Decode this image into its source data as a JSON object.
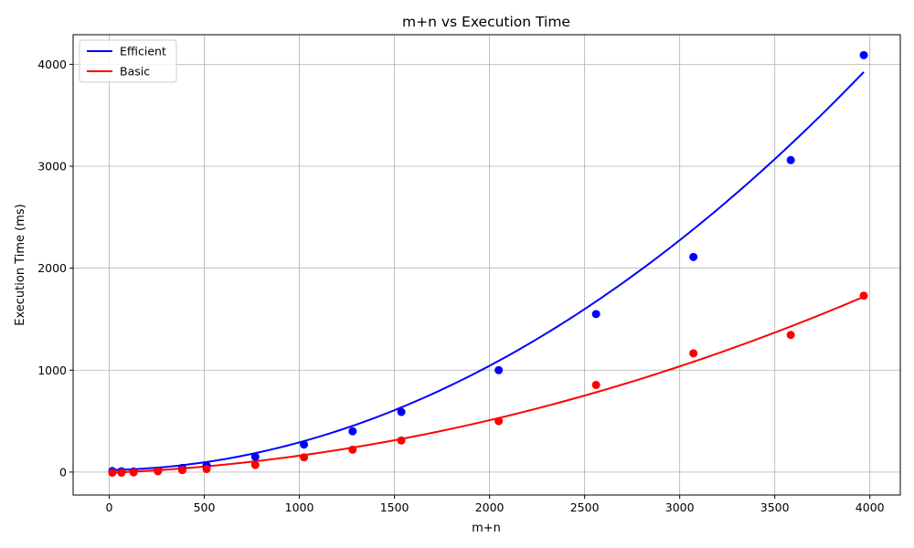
{
  "chart_data": {
    "type": "scatter",
    "title": "m+n vs Execution Time",
    "xlabel": "m+n",
    "ylabel": "Execution Time (ms)",
    "xlim": [
      -190,
      4160
    ],
    "ylim": [
      -225,
      4290
    ],
    "xticks": [
      0,
      500,
      1000,
      1500,
      2000,
      2500,
      3000,
      3500,
      4000
    ],
    "yticks": [
      0,
      1000,
      2000,
      3000,
      4000
    ],
    "grid": true,
    "legend_position": "top-left",
    "colors": {
      "Efficient": "#0000ff",
      "Basic": "#ff0000"
    },
    "series": [
      {
        "name": "Efficient",
        "x": [
          16,
          64,
          128,
          256,
          384,
          512,
          768,
          1024,
          1280,
          1536,
          2048,
          2560,
          3072,
          3584,
          3968
        ],
        "y": [
          10,
          8,
          6,
          15,
          40,
          65,
          150,
          270,
          400,
          590,
          1000,
          1550,
          2110,
          3060,
          4090
        ],
        "fit": {
          "type": "polynomial",
          "coeffs": [
            0.00024,
            0.0315,
            20
          ]
        }
      },
      {
        "name": "Basic",
        "x": [
          16,
          64,
          128,
          256,
          384,
          512,
          768,
          1024,
          1280,
          1536,
          2048,
          2560,
          3072,
          3584,
          3968
        ],
        "y": [
          -5,
          -5,
          -3,
          8,
          20,
          30,
          70,
          145,
          220,
          310,
          500,
          855,
          1165,
          1345,
          1730
        ],
        "fit": {
          "type": "polynomial",
          "coeffs": [
            9e-05,
            0.078,
            -7
          ]
        }
      }
    ]
  }
}
